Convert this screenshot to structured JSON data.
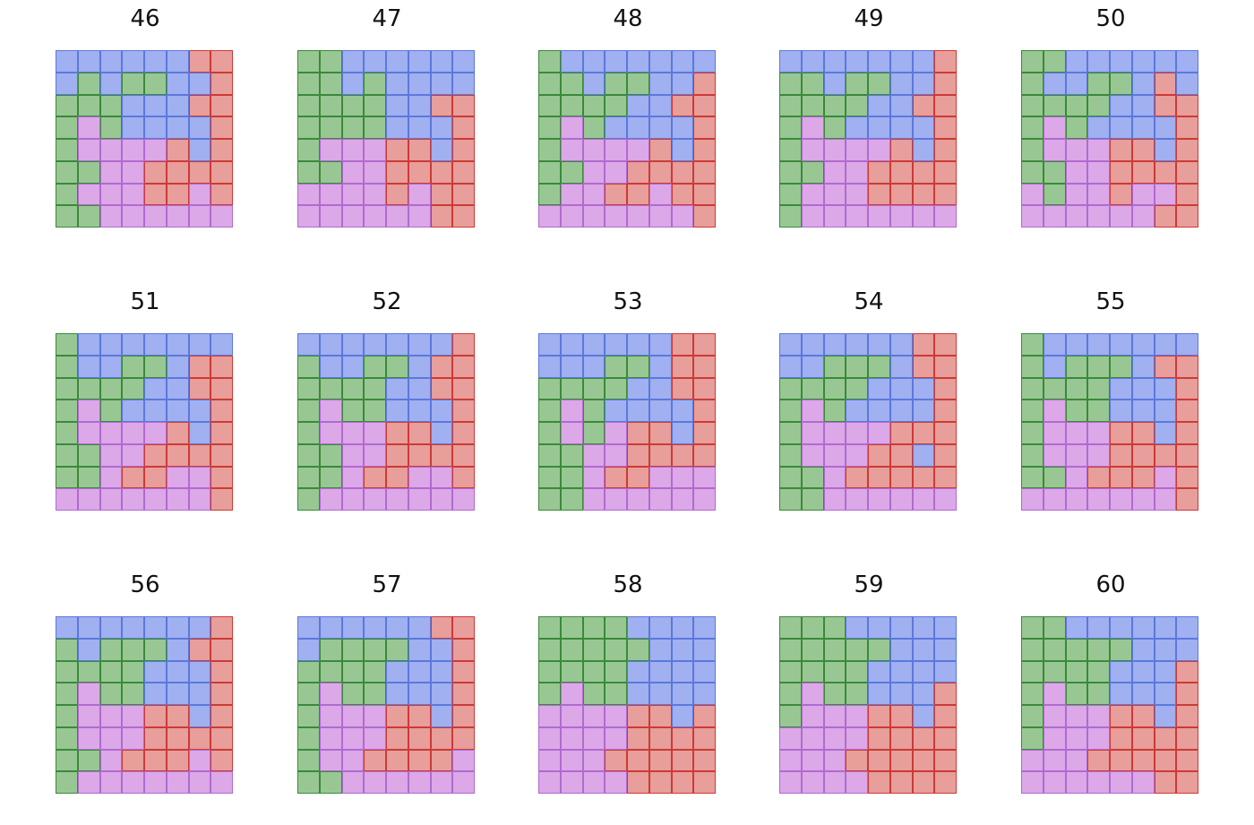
{
  "colors": {
    "b": {
      "fill": "#a0b0f0",
      "edge": "#5b78dd"
    },
    "g": {
      "fill": "#98c794",
      "edge": "#3a8a38"
    },
    "r": {
      "fill": "#e89e9a",
      "edge": "#cc3a36"
    },
    "p": {
      "fill": "#dca8e8",
      "edge": "#b06ad0"
    }
  },
  "panels": [
    {
      "label": "46",
      "grid": [
        "bbbbbbrr",
        "bgbggbbr",
        "gggbbbrr",
        "gpgbbbbr",
        "gpppprbr",
        "ggpprrrr",
        "gppprrpr",
        "ggpppppp"
      ]
    },
    {
      "label": "47",
      "grid": [
        "ggbbbbbb",
        "ggbgbbbb",
        "ggggbbrr",
        "ggggbbbr",
        "gppprrbr",
        "ggpprrrr",
        "pppprprr",
        "ppppppr r"
      ]
    },
    {
      "label": "48",
      "grid": [
        "gbbbbbbb",
        "ggbggbbr",
        "ggggbbrr",
        "gpgbbbbr",
        "gpppprbr",
        "ggpprrrr",
        "gpprrprr",
        "pppppppr"
      ]
    },
    {
      "label": "49",
      "grid": [
        "bbbbbbbr",
        "ggbggbbr",
        "ggggbbrr",
        "gpgbbbbr",
        "gpppprbr",
        "ggpprrrr",
        "gppprrrr",
        "gppppppp"
      ]
    },
    {
      "label": "50",
      "grid": [
        "ggbbbbbb",
        "gbbggbrb",
        "ggggbbrr",
        "gpgbbbbr",
        "gppprrbr",
        "ggpprrrr",
        "pgpprppr",
        "pppppprr"
      ]
    },
    {
      "label": "51",
      "grid": [
        "gbbbbbbb",
        "gbbggbrr",
        "ggggbbrr",
        "gpgbbbbr",
        "gpppprbr",
        "ggpprrrr",
        "ggprrppr",
        "pppppppr"
      ]
    },
    {
      "label": "52",
      "grid": [
        "bbbbbbbr",
        "gbbggbrr",
        "ggggbbrr",
        "gpggbbbr",
        "gppprrbr",
        "ggpprrrr",
        "ggprrppr",
        "gppppppp"
      ]
    },
    {
      "label": "53",
      "grid": [
        "bbbbbbrr",
        "bbbggbrr",
        "ggggbbrr",
        "gpgbbbbr",
        "gpgprrbr",
        "ggpprrrr",
        "ggprrppp",
        "ggpppppp"
      ]
    },
    {
      "label": "54",
      "grid": [
        "bbbbbbrr",
        "bbgggbrr",
        "ggggbbbr",
        "gpgbbbbr",
        "gpppprrr",
        "gppprrbr",
        "ggprrrrr",
        "ggpppppp"
      ]
    },
    {
      "label": "55",
      "grid": [
        "gbbbbbbb",
        "gbgggbrr",
        "ggggbbbr",
        "gpggbbbr",
        "gppprrbr",
        "gppprrrr",
        "ggprrrpr",
        "pppppppr"
      ]
    },
    {
      "label": "56",
      "grid": [
        "bbbbbbbr",
        "gbgggbrr",
        "ggggbbbr",
        "gpggbbbr",
        "gppprrbr",
        "gppprrrr",
        "ggprrrpr",
        "gppppppp"
      ]
    },
    {
      "label": "57",
      "grid": [
        "bbbbbbrr",
        "bggggbbr",
        "ggggbbbr",
        "gpggbbbr",
        "gppprrbr",
        "gppprrrr",
        "gpprrrrp",
        "ggpppppp"
      ]
    },
    {
      "label": "58",
      "grid": [
        "ggggbbbb",
        "gggggbbb",
        "ggggbbbb",
        "gpggbbbb",
        "pppprrbr",
        "pppprrrr",
        "ppprrrrr",
        "pppprrrr"
      ]
    },
    {
      "label": "59",
      "grid": [
        "gggbbbbb",
        "gggggbbb",
        "ggggbbbb",
        "gpggbbbr",
        "gppprrbr",
        "pppprrrr",
        "ppprrrrr",
        "pppprrrr"
      ]
    },
    {
      "label": "60",
      "grid": [
        "ggbbbbbb",
        "gggggbbb",
        "ggggbbbr",
        "gpggbbbr",
        "gppprrbr",
        "gppprrrr",
        "ppprrrrr",
        "pppppprr"
      ]
    }
  ]
}
